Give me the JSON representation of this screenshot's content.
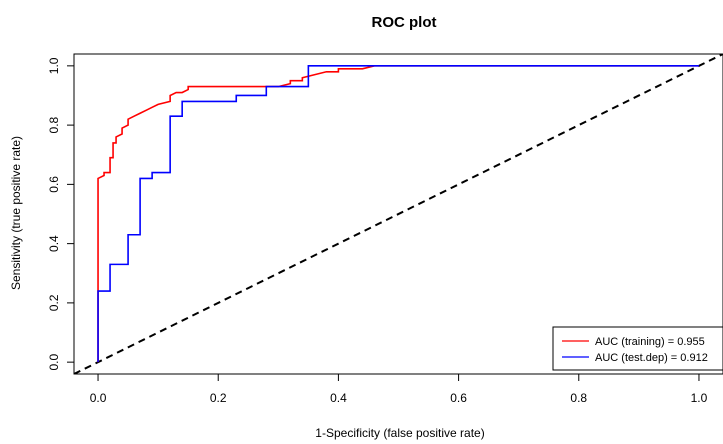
{
  "chart_data": {
    "type": "line",
    "title": "ROC plot",
    "xlabel": "1-Specificity (false positive rate)",
    "ylabel": "Sensitivity (true positive rate)",
    "xlim": [
      -0.04,
      1.04
    ],
    "ylim": [
      -0.04,
      1.04
    ],
    "xticks": [
      "0.0",
      "0.2",
      "0.4",
      "0.6",
      "0.8",
      "1.0"
    ],
    "yticks": [
      "0.0",
      "0.2",
      "0.4",
      "0.6",
      "0.8",
      "1.0"
    ],
    "grid": false,
    "legend_position": "bottom-right",
    "series": [
      {
        "name": "AUC (training) = 0.955",
        "color": "#ff0000",
        "x": [
          0,
          0,
          0.01,
          0.01,
          0.02,
          0.02,
          0.025,
          0.025,
          0.03,
          0.03,
          0.04,
          0.04,
          0.05,
          0.05,
          0.06,
          0.07,
          0.08,
          0.09,
          0.1,
          0.12,
          0.12,
          0.13,
          0.14,
          0.15,
          0.15,
          0.3,
          0.32,
          0.32,
          0.34,
          0.34,
          0.36,
          0.38,
          0.4,
          0.4,
          0.42,
          0.44,
          0.46,
          0.48,
          1.0
        ],
        "y": [
          0,
          0.62,
          0.63,
          0.64,
          0.64,
          0.69,
          0.69,
          0.74,
          0.74,
          0.76,
          0.77,
          0.79,
          0.8,
          0.82,
          0.83,
          0.84,
          0.85,
          0.86,
          0.87,
          0.88,
          0.9,
          0.91,
          0.91,
          0.92,
          0.93,
          0.93,
          0.94,
          0.95,
          0.95,
          0.96,
          0.97,
          0.98,
          0.98,
          0.99,
          0.99,
          0.99,
          1.0,
          1.0,
          1.0
        ]
      },
      {
        "name": "AUC (test.dep) = 0.912",
        "color": "#0000ff",
        "x": [
          0,
          0,
          0.02,
          0.02,
          0.05,
          0.05,
          0.07,
          0.07,
          0.09,
          0.09,
          0.12,
          0.12,
          0.14,
          0.14,
          0.23,
          0.23,
          0.28,
          0.28,
          0.35,
          0.35,
          1.0
        ],
        "y": [
          0,
          0.24,
          0.24,
          0.33,
          0.33,
          0.43,
          0.43,
          0.62,
          0.62,
          0.64,
          0.64,
          0.83,
          0.83,
          0.88,
          0.88,
          0.9,
          0.9,
          0.93,
          0.93,
          1.0,
          1.0
        ]
      }
    ],
    "reference_line": {
      "x": [
        0,
        1
      ],
      "y": [
        0,
        1
      ],
      "style": "dashed",
      "color": "#000000"
    }
  }
}
